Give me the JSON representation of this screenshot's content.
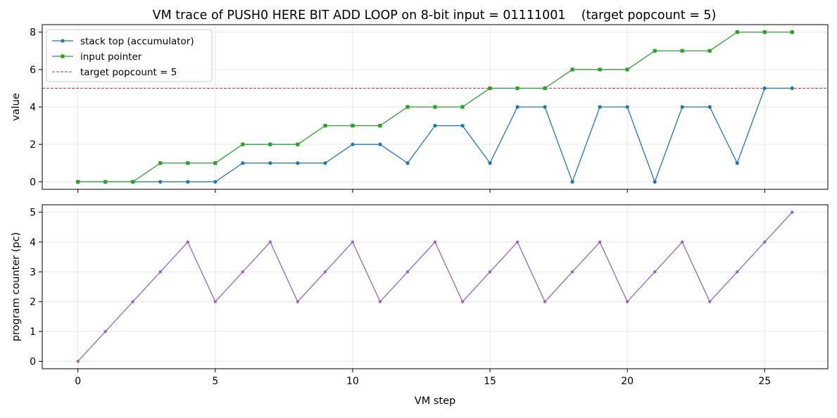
{
  "title": "VM trace of PUSH0 HERE BIT ADD LOOP on 8-bit input = 01111001    (target popcount = 5)",
  "chart_data": [
    {
      "type": "line",
      "ylabel": "value",
      "xlim": [
        -1.3,
        27.3
      ],
      "ylim": [
        -0.4,
        8.4
      ],
      "xticks": [
        0,
        5,
        10,
        15,
        20,
        25
      ],
      "yticks": [
        0,
        2,
        4,
        6,
        8
      ],
      "grid": true,
      "legend_position": "top-left",
      "x": [
        0,
        1,
        2,
        3,
        4,
        5,
        6,
        7,
        8,
        9,
        10,
        11,
        12,
        13,
        14,
        15,
        16,
        17,
        18,
        19,
        20,
        21,
        22,
        23,
        24,
        25,
        26
      ],
      "series": [
        {
          "name": "stack top (accumulator)",
          "color": "#1f77b4",
          "marker": "circle",
          "values": [
            0,
            0,
            0,
            0,
            0,
            0,
            1,
            1,
            1,
            1,
            2,
            2,
            1,
            3,
            3,
            1,
            4,
            4,
            0,
            4,
            4,
            0,
            4,
            4,
            1,
            5,
            5
          ]
        },
        {
          "name": "input pointer",
          "color": "#2ca02c",
          "marker": "square",
          "values": [
            0,
            0,
            0,
            1,
            1,
            1,
            2,
            2,
            2,
            3,
            3,
            3,
            4,
            4,
            4,
            5,
            5,
            5,
            6,
            6,
            6,
            7,
            7,
            7,
            8,
            8,
            8
          ]
        }
      ],
      "reference_lines": [
        {
          "name": "target popcount = 5",
          "y": 5,
          "color": "#d62728",
          "style": "dashed"
        }
      ]
    },
    {
      "type": "line",
      "xlabel": "VM step",
      "ylabel": "program counter (pc)",
      "xlim": [
        -1.3,
        27.3
      ],
      "ylim": [
        -0.25,
        5.25
      ],
      "xticks": [
        0,
        5,
        10,
        15,
        20,
        25
      ],
      "yticks": [
        0,
        1,
        2,
        3,
        4,
        5
      ],
      "grid": true,
      "x": [
        0,
        1,
        2,
        3,
        4,
        5,
        6,
        7,
        8,
        9,
        10,
        11,
        12,
        13,
        14,
        15,
        16,
        17,
        18,
        19,
        20,
        21,
        22,
        23,
        24,
        25,
        26
      ],
      "series": [
        {
          "color": "#9467bd",
          "marker": "circle",
          "values": [
            0,
            1,
            2,
            3,
            4,
            2,
            3,
            4,
            2,
            3,
            4,
            2,
            3,
            4,
            2,
            3,
            4,
            2,
            3,
            4,
            2,
            3,
            4,
            2,
            3,
            4,
            5
          ]
        }
      ]
    }
  ]
}
